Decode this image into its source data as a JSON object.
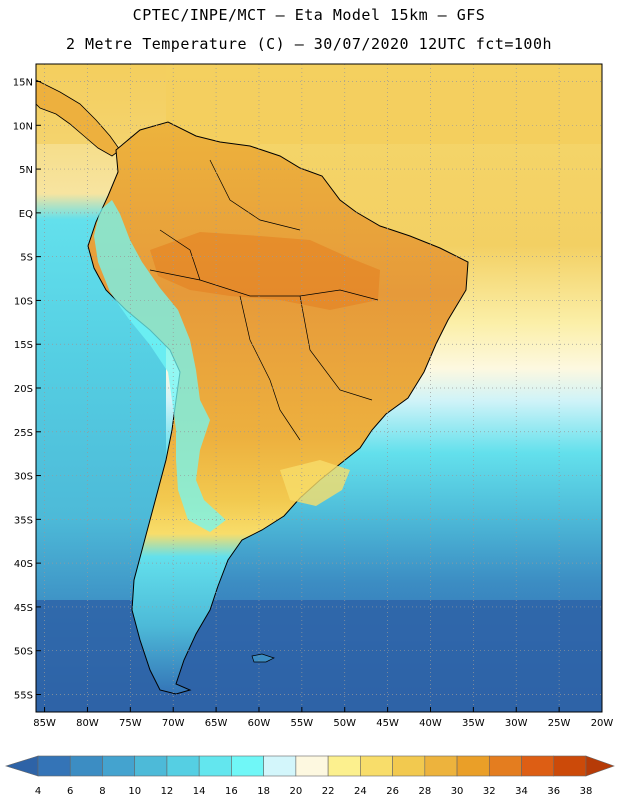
{
  "title_line1": "CPTEC/INPE/MCT —  Eta Model 15km — GFS",
  "title_line2": "2 Metre Temperature (C) — 30/07/2020 12UTC fct=100h",
  "lat_labels": [
    "15N",
    "10N",
    "5N",
    "EQ",
    "5S",
    "10S",
    "15S",
    "20S",
    "25S",
    "30S",
    "35S",
    "40S",
    "45S",
    "50S",
    "55S"
  ],
  "lon_labels": [
    "85W",
    "80W",
    "75W",
    "70W",
    "65W",
    "60W",
    "55W",
    "50W",
    "45W",
    "40W",
    "35W",
    "30W",
    "25W",
    "20W"
  ],
  "colorbar": {
    "labels": [
      "4",
      "6",
      "8",
      "10",
      "12",
      "14",
      "16",
      "18",
      "20",
      "22",
      "24",
      "26",
      "28",
      "30",
      "32",
      "34",
      "36",
      "38"
    ],
    "colors": [
      "#2E63A7",
      "#3474B7",
      "#3C8DC3",
      "#44A3CF",
      "#4DBAD8",
      "#55CFE3",
      "#63E6EE",
      "#70F7F7",
      "#D3F6FB",
      "#FDF8E0",
      "#FCF08E",
      "#F8DD6A",
      "#F2C94F",
      "#EDB33D",
      "#EA9F28",
      "#E47D1F",
      "#DD5E14",
      "#CC4A09",
      "#B63B07"
    ]
  },
  "map_colors": {
    "ocean_north": "#F5D468",
    "ocean_south": "#2E63A7",
    "land_hot": "#E69A3A",
    "land_andes": "#55CFE3"
  }
}
